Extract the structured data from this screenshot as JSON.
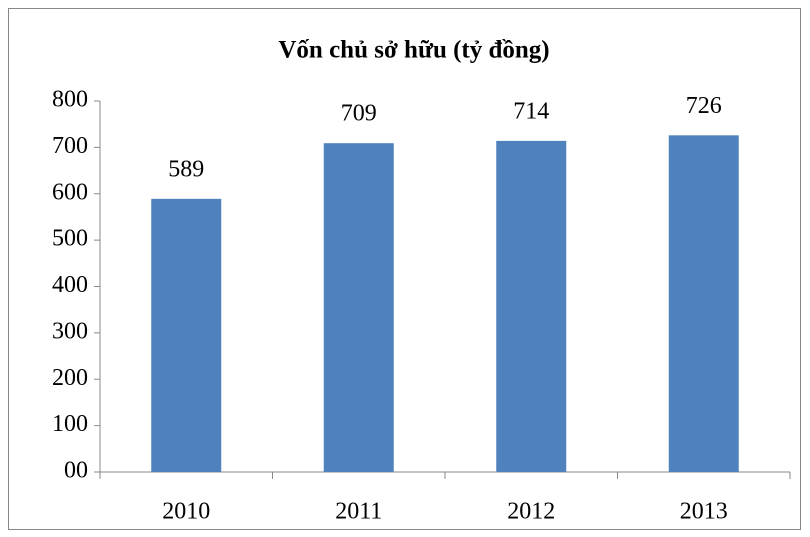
{
  "chart_data": {
    "type": "bar",
    "title": "Vốn chủ sở hữu (tỷ đồng)",
    "categories": [
      "2010",
      "2011",
      "2012",
      "2013"
    ],
    "values": [
      589,
      709,
      714,
      726
    ],
    "color": "#4f81bd",
    "ylim": [
      0,
      800
    ],
    "yticks": [
      {
        "value": 0,
        "label": "00"
      },
      100,
      200,
      300,
      400,
      500,
      600,
      700,
      800
    ]
  }
}
